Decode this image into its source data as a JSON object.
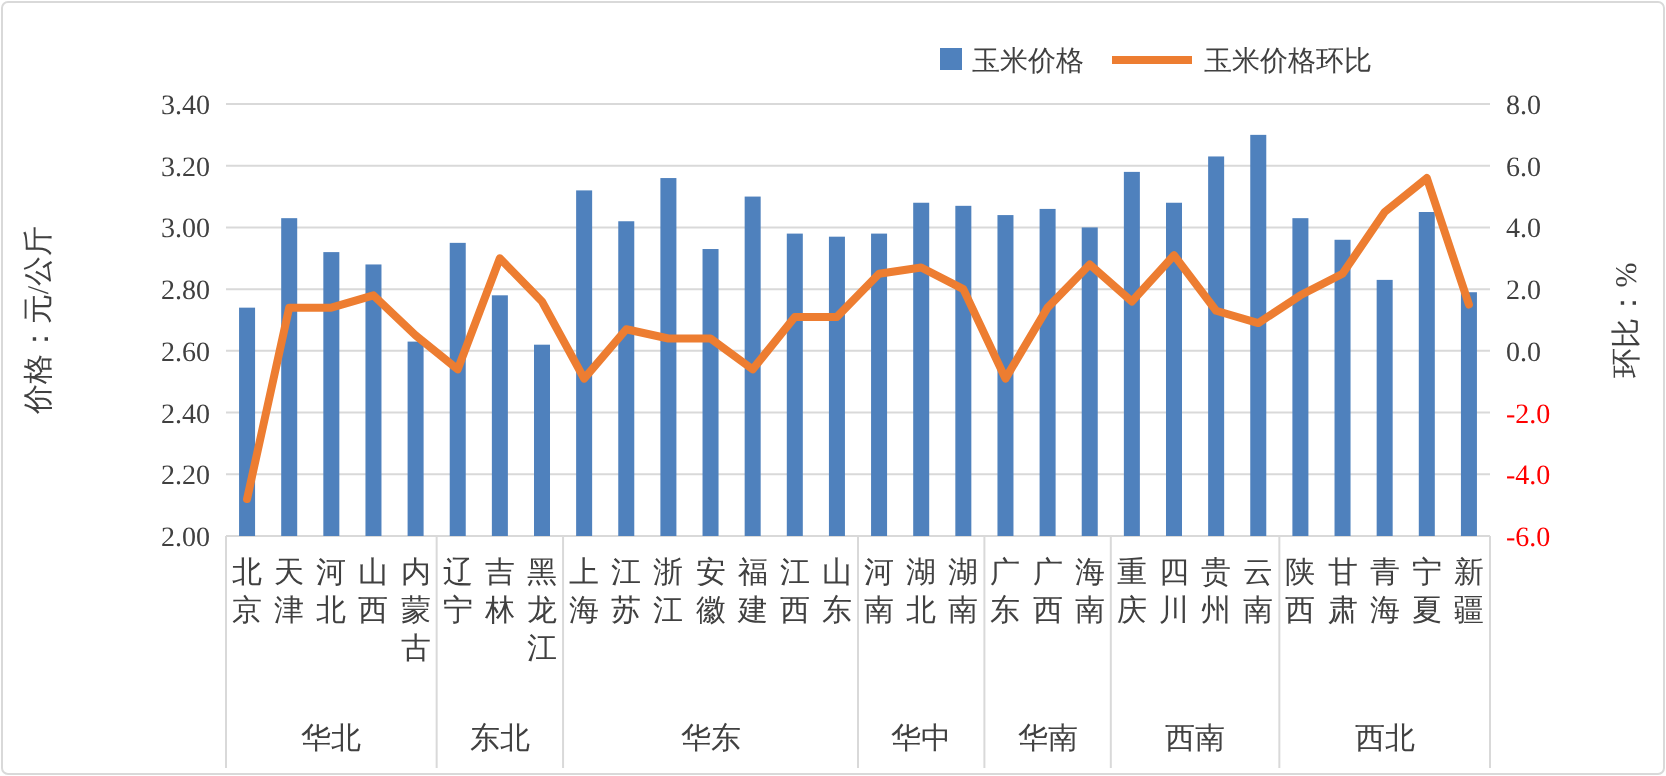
{
  "chart_data": {
    "type": "bar",
    "categories": [
      "北京",
      "天津",
      "河北",
      "山西",
      "内蒙古",
      "辽宁",
      "吉林",
      "黑龙江",
      "上海",
      "江苏",
      "浙江",
      "安徽",
      "福建",
      "江西",
      "山东",
      "河南",
      "湖北",
      "湖南",
      "广东",
      "广西",
      "海南",
      "重庆",
      "四川",
      "贵州",
      "云南",
      "陕西",
      "甘肃",
      "青海",
      "宁夏",
      "新疆"
    ],
    "series": [
      {
        "name": "玉米价格",
        "color": "#4f81bd",
        "values": [
          2.74,
          3.03,
          2.92,
          2.88,
          2.63,
          2.95,
          2.78,
          2.62,
          3.12,
          3.02,
          3.16,
          2.93,
          3.1,
          2.98,
          2.97,
          2.98,
          3.08,
          3.07,
          3.04,
          3.06,
          3.0,
          3.18,
          3.08,
          3.23,
          3.3,
          3.03,
          2.96,
          2.83,
          3.05,
          2.79
        ]
      },
      {
        "name": "玉米价格环比",
        "type": "line",
        "axis": "y2",
        "color": "#ed7d31",
        "values": [
          -4.8,
          1.4,
          1.4,
          1.8,
          0.5,
          -0.6,
          3.0,
          1.6,
          -0.9,
          0.7,
          0.4,
          0.4,
          -0.6,
          1.1,
          1.1,
          2.5,
          2.7,
          2.0,
          -0.9,
          1.4,
          2.8,
          1.6,
          3.1,
          1.3,
          0.9,
          1.8,
          2.5,
          4.5,
          5.6,
          1.5
        ]
      }
    ],
    "ylabel": "价格：元/公斤",
    "y2label": "环比：%",
    "ylim": [
      2.0,
      3.4
    ],
    "yticks": [
      {
        "value": 2.0,
        "label": "2.00"
      },
      {
        "value": 2.2,
        "label": "2.20"
      },
      {
        "value": 2.4,
        "label": "2.40"
      },
      {
        "value": 2.6,
        "label": "2.60"
      },
      {
        "value": 2.8,
        "label": "2.80"
      },
      {
        "value": 3.0,
        "label": "3.00"
      },
      {
        "value": 3.2,
        "label": "3.20"
      },
      {
        "value": 3.4,
        "label": "3.40"
      }
    ],
    "y2lim": [
      -6,
      8
    ],
    "y2ticks": [
      {
        "value": -6,
        "label": "-6.0"
      },
      {
        "value": -4,
        "label": "-4.0"
      },
      {
        "value": -2,
        "label": "-2.0"
      },
      {
        "value": 0,
        "label": "0.0"
      },
      {
        "value": 2,
        "label": "2.0"
      },
      {
        "value": 4,
        "label": "4.0"
      },
      {
        "value": 6,
        "label": "6.0"
      },
      {
        "value": 8,
        "label": "8.0"
      }
    ],
    "annotations": [
      "华北",
      "东北",
      "华东",
      "华中",
      "华南",
      "西南",
      "西北"
    ],
    "grid": "y",
    "legend": "top right"
  }
}
